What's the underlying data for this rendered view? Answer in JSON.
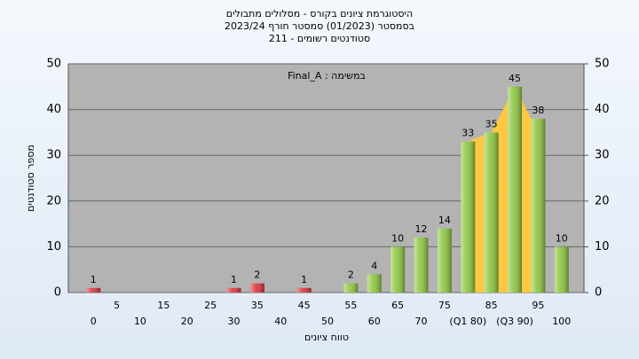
{
  "chart_data": {
    "type": "bar",
    "title": "היסטוגרמת ציונים בקורס - מסלולים מתבולים",
    "subtitle": "בסמסטר  (01/2023)  סמסטר חורף 2023/24",
    "subtitle2": "סטודנטים רשומים - 211",
    "annotation": "Final_A : במשימה",
    "x_label": "טווח ציונים",
    "y_label": "מספר סטודנטים",
    "categories": [
      "0",
      "5",
      "10",
      "15",
      "20",
      "25",
      "30",
      "35",
      "40",
      "45",
      "50",
      "55",
      "60",
      "65",
      "70",
      "75",
      "(Q1 80)",
      "85",
      "(Q3 90)",
      "95",
      "100"
    ],
    "values": [
      1,
      0,
      0,
      0,
      0,
      0,
      1,
      2,
      0,
      1,
      0,
      2,
      4,
      10,
      12,
      14,
      33,
      35,
      45,
      38,
      10
    ],
    "colors": [
      "#d9363e",
      "#d9363e",
      "#d9363e",
      "#d9363e",
      "#d9363e",
      "#d9363e",
      "#d9363e",
      "#d9363e",
      "#d9363e",
      "#d9363e",
      "#d9363e",
      "#8dc63f",
      "#8dc63f",
      "#8dc63f",
      "#8dc63f",
      "#8dc63f",
      "#8dc63f",
      "#8dc63f",
      "#8dc63f",
      "#8dc63f",
      "#8dc63f"
    ],
    "band_color": "#ffc840",
    "ylim": [
      0,
      50
    ],
    "yticks": [
      0,
      10,
      20,
      30,
      40,
      50
    ],
    "y2lim": [
      0,
      50
    ],
    "y2ticks": [
      0,
      10,
      20,
      30,
      40,
      50
    ],
    "grid": true
  }
}
